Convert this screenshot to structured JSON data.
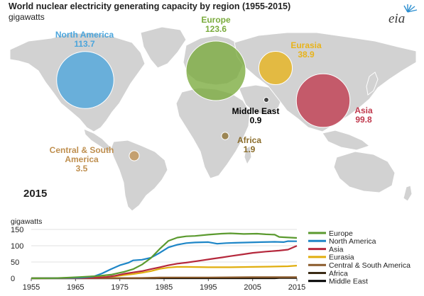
{
  "header": {
    "title": "World nuclear electricity generating capacity by region (1955-2015)",
    "subtitle": "gigawatts",
    "logo_text": "eia"
  },
  "map": {
    "year": "2015",
    "bubbles": [
      {
        "name": "North America",
        "value": 113.7,
        "value_label": "113.7",
        "color": "#4ba5dc"
      },
      {
        "name": "Europe",
        "value": 123.6,
        "value_label": "123.6",
        "color": "#7aab3c"
      },
      {
        "name": "Eurasia",
        "value": 38.9,
        "value_label": "38.9",
        "color": "#e8b31a"
      },
      {
        "name": "Asia",
        "value": 99.8,
        "value_label": "99.8",
        "color": "#c0394d"
      },
      {
        "name": "Middle East",
        "value": 0.9,
        "value_label": "0.9",
        "color": "#111111"
      },
      {
        "name": "Africa",
        "value": 1.9,
        "value_label": "1.9",
        "color": "#8a6c2a"
      },
      {
        "name": "Central & South America",
        "name_lines": [
          "Central & South",
          "America"
        ],
        "value": 3.5,
        "value_label": "3.5",
        "color": "#bf8f4f"
      }
    ]
  },
  "chart_data": {
    "type": "line",
    "ylabel": "gigawatts",
    "xlim": [
      1955,
      2015
    ],
    "ylim": [
      0,
      150
    ],
    "xticks": [
      1955,
      1965,
      1975,
      1985,
      1995,
      2005,
      2015
    ],
    "yticks": [
      0,
      50,
      100,
      150
    ],
    "grid": true,
    "legend_position": "right",
    "series": [
      {
        "name": "Europe",
        "color": "#5b9a2f",
        "points": [
          [
            1955,
            0
          ],
          [
            1960,
            0.5
          ],
          [
            1963,
            2
          ],
          [
            1966,
            4
          ],
          [
            1970,
            7
          ],
          [
            1973,
            11
          ],
          [
            1976,
            20
          ],
          [
            1978,
            28
          ],
          [
            1980,
            42
          ],
          [
            1982,
            62
          ],
          [
            1984,
            90
          ],
          [
            1986,
            115
          ],
          [
            1988,
            125
          ],
          [
            1990,
            129
          ],
          [
            1992,
            130
          ],
          [
            1995,
            134
          ],
          [
            1998,
            137
          ],
          [
            2000,
            138
          ],
          [
            2003,
            136
          ],
          [
            2006,
            137
          ],
          [
            2008,
            135
          ],
          [
            2010,
            134
          ],
          [
            2011,
            127
          ],
          [
            2012,
            126
          ],
          [
            2015,
            124
          ]
        ]
      },
      {
        "name": "North America",
        "color": "#1e86c7",
        "points": [
          [
            1955,
            0
          ],
          [
            1960,
            0.5
          ],
          [
            1963,
            1
          ],
          [
            1966,
            2
          ],
          [
            1969,
            5
          ],
          [
            1971,
            15
          ],
          [
            1973,
            28
          ],
          [
            1975,
            40
          ],
          [
            1977,
            48
          ],
          [
            1978,
            55
          ],
          [
            1980,
            57
          ],
          [
            1982,
            63
          ],
          [
            1984,
            78
          ],
          [
            1986,
            95
          ],
          [
            1988,
            103
          ],
          [
            1990,
            108
          ],
          [
            1992,
            110
          ],
          [
            1995,
            111
          ],
          [
            1997,
            106
          ],
          [
            1999,
            108
          ],
          [
            2001,
            109
          ],
          [
            2004,
            110
          ],
          [
            2007,
            111
          ],
          [
            2010,
            112
          ],
          [
            2012,
            111
          ],
          [
            2013,
            114
          ],
          [
            2015,
            113.7
          ]
        ]
      },
      {
        "name": "Asia",
        "color": "#b5283c",
        "points": [
          [
            1955,
            0
          ],
          [
            1965,
            0.5
          ],
          [
            1968,
            1
          ],
          [
            1970,
            2
          ],
          [
            1972,
            4
          ],
          [
            1974,
            8
          ],
          [
            1976,
            14
          ],
          [
            1978,
            18
          ],
          [
            1980,
            22
          ],
          [
            1982,
            28
          ],
          [
            1984,
            34
          ],
          [
            1986,
            40
          ],
          [
            1988,
            45
          ],
          [
            1990,
            48
          ],
          [
            1993,
            54
          ],
          [
            1996,
            60
          ],
          [
            1998,
            64
          ],
          [
            2000,
            68
          ],
          [
            2003,
            74
          ],
          [
            2005,
            78
          ],
          [
            2008,
            82
          ],
          [
            2010,
            84
          ],
          [
            2011,
            85
          ],
          [
            2013,
            88
          ],
          [
            2015,
            99.8
          ]
        ]
      },
      {
        "name": "Eurasia",
        "color": "#e0ae0e",
        "points": [
          [
            1955,
            0
          ],
          [
            1960,
            0.5
          ],
          [
            1965,
            1
          ],
          [
            1970,
            3
          ],
          [
            1974,
            6
          ],
          [
            1976,
            10
          ],
          [
            1978,
            13
          ],
          [
            1980,
            17
          ],
          [
            1982,
            22
          ],
          [
            1984,
            29
          ],
          [
            1986,
            33
          ],
          [
            1988,
            35
          ],
          [
            1990,
            35
          ],
          [
            1995,
            34
          ],
          [
            2000,
            34
          ],
          [
            2005,
            35
          ],
          [
            2010,
            36
          ],
          [
            2013,
            37
          ],
          [
            2015,
            38.9
          ]
        ]
      },
      {
        "name": "Central & South America",
        "color": "#8a5a2b",
        "points": [
          [
            1955,
            0
          ],
          [
            1973,
            0.3
          ],
          [
            1975,
            0.6
          ],
          [
            1980,
            1
          ],
          [
            1984,
            2.5
          ],
          [
            1990,
            2.6
          ],
          [
            1995,
            2.6
          ],
          [
            2000,
            3
          ],
          [
            2005,
            3.5
          ],
          [
            2010,
            3.5
          ],
          [
            2015,
            3.5
          ]
        ]
      },
      {
        "name": "Africa",
        "color": "#3a2a14",
        "points": [
          [
            1955,
            0
          ],
          [
            1983,
            0
          ],
          [
            1984,
            0.9
          ],
          [
            1985,
            1.8
          ],
          [
            1990,
            1.8
          ],
          [
            2000,
            1.8
          ],
          [
            2010,
            1.8
          ],
          [
            2015,
            1.9
          ]
        ]
      },
      {
        "name": "Middle East",
        "color": "#000000",
        "points": [
          [
            1955,
            0
          ],
          [
            2010,
            0
          ],
          [
            2011,
            0.9
          ],
          [
            2015,
            0.9
          ]
        ]
      }
    ]
  }
}
